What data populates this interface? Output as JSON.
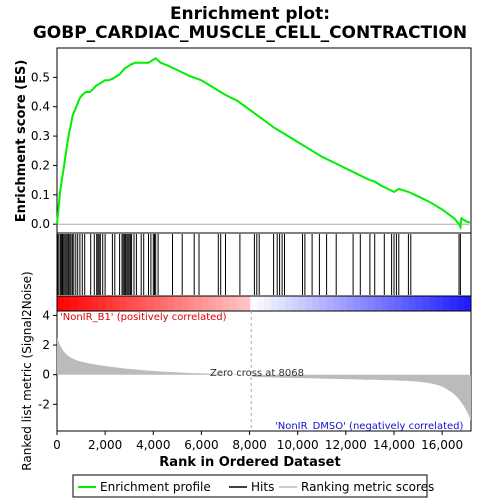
{
  "chart_data": {
    "type": "line",
    "title": "Enrichment plot: GOBP_CARDIAC_MUSCLE_CELL_CONTRACTION",
    "title_lines": [
      "Enrichment plot:",
      "GOBP_CARDIAC_MUSCLE_CELL_CONTRACTION"
    ],
    "ylabel_top": "Enrichment score (ES)",
    "ylabel_bottom": "Ranked list metric (Signal2Noise)",
    "xlabel": "Rank in Ordered Dataset",
    "xlim": [
      0,
      17200
    ],
    "xticks": [
      0,
      2000,
      4000,
      6000,
      8000,
      10000,
      12000,
      14000,
      16000
    ],
    "xtick_labels": [
      "0",
      "2,000",
      "4,000",
      "6,000",
      "8,000",
      "10,000",
      "12,000",
      "14,000",
      "16,000"
    ],
    "es_ylim": [
      -0.03,
      0.6
    ],
    "es_yticks": [
      0.0,
      0.1,
      0.2,
      0.3,
      0.4,
      0.5
    ],
    "es_ytick_labels": [
      "0.0",
      "0.1",
      "0.2",
      "0.3",
      "0.4",
      "0.5"
    ],
    "metric_ylim": [
      -3.8,
      4.3
    ],
    "metric_yticks": [
      4,
      2,
      0,
      -2
    ],
    "metric_ytick_labels": [
      "4",
      "2",
      "0",
      "-2"
    ],
    "zero_cross_rank": 8068,
    "annotations": {
      "positive": "'NonIR_B1' (positively correlated)",
      "zero_cross": "Zero cross at 8068",
      "negative": "'NonIR_DMSO' (negatively correlated)"
    },
    "colors": {
      "es_line": "#00ee00",
      "positive_text": "#dd0000",
      "negative_text": "#1111cc",
      "metric_fill": "#bbbbbb"
    },
    "es_profile": {
      "x": [
        0,
        60,
        130,
        200,
        280,
        350,
        420,
        500,
        580,
        650,
        750,
        850,
        950,
        1050,
        1200,
        1350,
        1500,
        1600,
        1700,
        1800,
        1900,
        2000,
        2150,
        2300,
        2400,
        2500,
        2600,
        2700,
        2800,
        2900,
        3000,
        3100,
        3250,
        3400,
        3550,
        3700,
        3800,
        3900,
        4000,
        4100,
        4300,
        4600,
        5000,
        5500,
        6000,
        6500,
        7000,
        7500,
        8000,
        8500,
        9000,
        9500,
        10000,
        10500,
        11000,
        11500,
        12000,
        12500,
        13000,
        13200,
        13500,
        14000,
        14200,
        14400,
        14600,
        15000,
        15500,
        16000,
        16500,
        16700,
        16760,
        16800,
        17000,
        17150
      ],
      "y": [
        0.0,
        0.05,
        0.11,
        0.15,
        0.19,
        0.23,
        0.27,
        0.31,
        0.34,
        0.37,
        0.39,
        0.41,
        0.43,
        0.44,
        0.45,
        0.45,
        0.46,
        0.47,
        0.475,
        0.48,
        0.485,
        0.49,
        0.49,
        0.495,
        0.5,
        0.505,
        0.51,
        0.52,
        0.53,
        0.535,
        0.54,
        0.545,
        0.55,
        0.55,
        0.55,
        0.55,
        0.55,
        0.555,
        0.56,
        0.565,
        0.55,
        0.54,
        0.525,
        0.505,
        0.49,
        0.465,
        0.44,
        0.42,
        0.39,
        0.36,
        0.33,
        0.305,
        0.28,
        0.255,
        0.23,
        0.21,
        0.19,
        0.17,
        0.15,
        0.145,
        0.13,
        0.11,
        0.12,
        0.115,
        0.11,
        0.095,
        0.075,
        0.05,
        0.02,
        0.0,
        -0.01,
        0.02,
        0.01,
        0.005
      ]
    },
    "hits": [
      30,
      80,
      140,
      190,
      230,
      280,
      330,
      380,
      430,
      480,
      530,
      580,
      640,
      700,
      780,
      860,
      950,
      1050,
      1150,
      1400,
      1550,
      1650,
      1700,
      1750,
      1800,
      1900,
      2000,
      2300,
      2400,
      2600,
      2700,
      2750,
      2800,
      2850,
      2900,
      2950,
      3000,
      3050,
      3100,
      3200,
      3300,
      3500,
      3600,
      3800,
      3900,
      4000,
      4050,
      4100,
      4200,
      4800,
      5200,
      5700,
      5900,
      6700,
      6800,
      7000,
      7600,
      8200,
      8300,
      8400,
      9000,
      9150,
      9250,
      9350,
      9450,
      10200,
      10300,
      10600,
      10900,
      11200,
      11600,
      12300,
      12600,
      13000,
      13200,
      13600,
      13900,
      14000,
      14100,
      14200,
      14600,
      14700,
      16700,
      16760
    ]
  },
  "legend": {
    "items": [
      {
        "label": "Enrichment profile",
        "color": "#00ee00"
      },
      {
        "label": "Hits",
        "color": "#000000"
      },
      {
        "label": "Ranking metric scores",
        "color": "#bbbbbb"
      }
    ]
  }
}
